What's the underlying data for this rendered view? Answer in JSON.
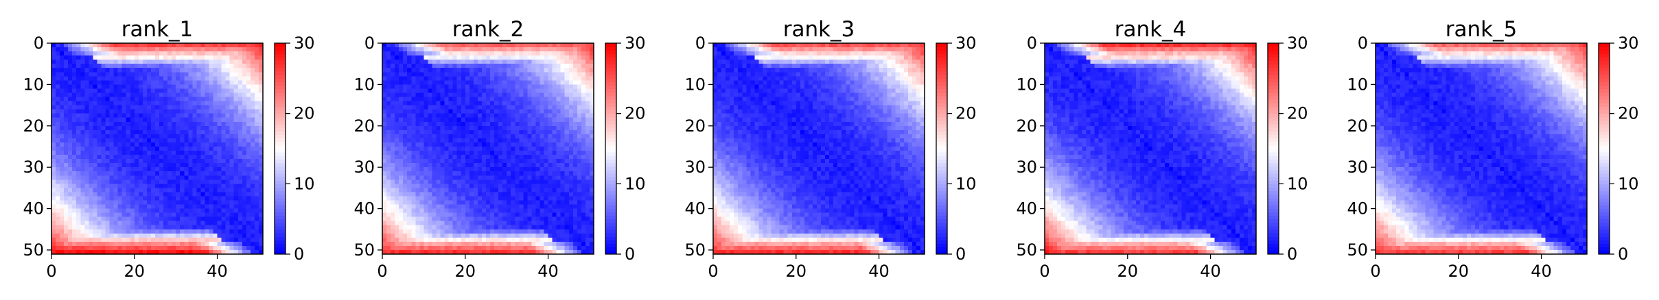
{
  "chart_data": [
    {
      "type": "heatmap",
      "title": "rank_1",
      "xlim": [
        0,
        51
      ],
      "ylim": [
        51,
        0
      ],
      "x_ticks": [
        0,
        20,
        40
      ],
      "y_ticks": [
        0,
        10,
        20,
        30,
        40,
        50
      ],
      "colorbar": {
        "colormap": "bwr",
        "range": [
          0,
          30
        ],
        "ticks": [
          0,
          10,
          20,
          30
        ]
      },
      "matrix": {
        "size": 51,
        "diagonal_value": 1,
        "off_diagonal_min": 2,
        "far_corner_value": 28,
        "top_band_rows": 3,
        "top_band_value": 26,
        "bottom_band_rows": 3,
        "bottom_band_value": 29
      }
    },
    {
      "type": "heatmap",
      "title": "rank_2",
      "xlim": [
        0,
        51
      ],
      "ylim": [
        51,
        0
      ],
      "x_ticks": [
        0,
        20,
        40
      ],
      "y_ticks": [
        0,
        10,
        20,
        30,
        40,
        50
      ],
      "colorbar": {
        "colormap": "bwr",
        "range": [
          0,
          30
        ],
        "ticks": [
          0,
          10,
          20,
          30
        ]
      },
      "matrix": {
        "size": 51,
        "diagonal_value": 1,
        "off_diagonal_min": 2,
        "far_corner_value": 27,
        "top_band_rows": 3,
        "top_band_value": 24,
        "bottom_band_rows": 3,
        "bottom_band_value": 27
      }
    },
    {
      "type": "heatmap",
      "title": "rank_3",
      "xlim": [
        0,
        51
      ],
      "ylim": [
        51,
        0
      ],
      "x_ticks": [
        0,
        20,
        40
      ],
      "y_ticks": [
        0,
        10,
        20,
        30,
        40,
        50
      ],
      "colorbar": {
        "colormap": "bwr",
        "range": [
          0,
          30
        ],
        "ticks": [
          0,
          10,
          20,
          30
        ]
      },
      "matrix": {
        "size": 51,
        "diagonal_value": 1,
        "off_diagonal_min": 2,
        "far_corner_value": 27,
        "top_band_rows": 3,
        "top_band_value": 25,
        "bottom_band_rows": 3,
        "bottom_band_value": 27
      }
    },
    {
      "type": "heatmap",
      "title": "rank_4",
      "xlim": [
        0,
        51
      ],
      "ylim": [
        51,
        0
      ],
      "x_ticks": [
        0,
        20,
        40
      ],
      "y_ticks": [
        0,
        10,
        20,
        30,
        40,
        50
      ],
      "colorbar": {
        "colormap": "bwr",
        "range": [
          0,
          30
        ],
        "ticks": [
          0,
          10,
          20,
          30
        ]
      },
      "matrix": {
        "size": 51,
        "diagonal_value": 1,
        "off_diagonal_min": 2,
        "far_corner_value": 28,
        "top_band_rows": 3,
        "top_band_value": 27,
        "bottom_band_rows": 3,
        "bottom_band_value": 26
      }
    },
    {
      "type": "heatmap",
      "title": "rank_5",
      "xlim": [
        0,
        51
      ],
      "ylim": [
        51,
        0
      ],
      "x_ticks": [
        0,
        20,
        40
      ],
      "y_ticks": [
        0,
        10,
        20,
        30,
        40,
        50
      ],
      "colorbar": {
        "colormap": "bwr",
        "range": [
          0,
          30
        ],
        "ticks": [
          0,
          10,
          20,
          30
        ]
      },
      "matrix": {
        "size": 51,
        "diagonal_value": 1,
        "off_diagonal_min": 2,
        "far_corner_value": 27,
        "top_band_rows": 3,
        "top_band_value": 24,
        "bottom_band_rows": 3,
        "bottom_band_value": 26
      }
    }
  ]
}
